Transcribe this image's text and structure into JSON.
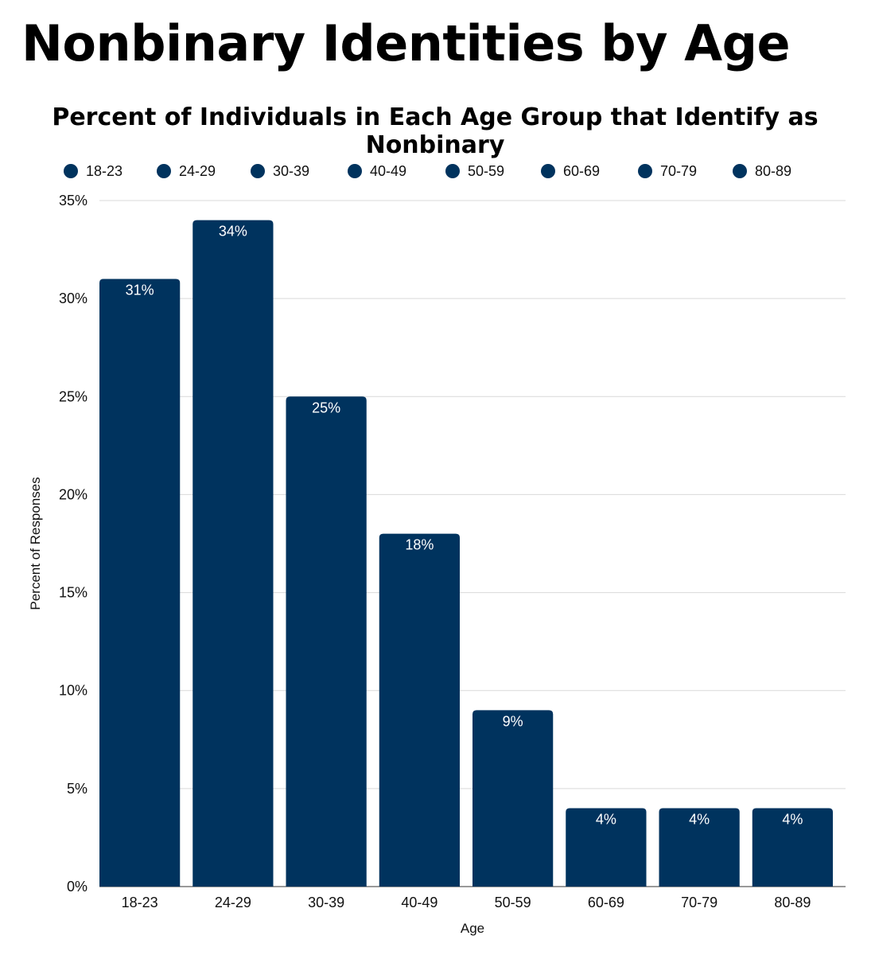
{
  "chart_data": {
    "type": "bar",
    "title": "Nonbinary Identities by Age",
    "subtitle": "Percent of Individuals in Each Age Group that Identify as Nonbinary",
    "xlabel": "Age",
    "ylabel": "Percent of Responses",
    "categories": [
      "18-23",
      "24-29",
      "30-39",
      "40-49",
      "50-59",
      "60-69",
      "70-79",
      "80-89"
    ],
    "values": [
      31,
      34,
      25,
      18,
      9,
      4,
      4,
      4
    ],
    "data_labels": [
      "31%",
      "34%",
      "25%",
      "18%",
      "9%",
      "4%",
      "4%",
      "4%"
    ],
    "ylim": [
      0,
      35
    ],
    "yticks": [
      0,
      5,
      10,
      15,
      20,
      25,
      30,
      35
    ],
    "ytick_labels": [
      "0%",
      "5%",
      "10%",
      "15%",
      "20%",
      "25%",
      "30%",
      "35%"
    ],
    "legend": [
      "18-23",
      "24-29",
      "30-39",
      "40-49",
      "50-59",
      "60-69",
      "70-79",
      "80-89"
    ],
    "legend_position": "top",
    "grid": true,
    "bar_color": "#00335e"
  }
}
